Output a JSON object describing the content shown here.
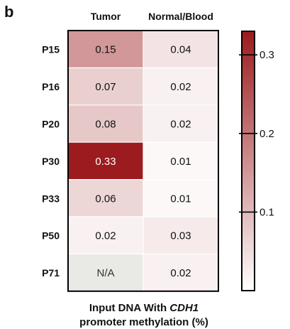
{
  "panel_label": "b",
  "chart_data": {
    "type": "heatmap",
    "columns": [
      "Tumor",
      "Normal/Blood"
    ],
    "rows": [
      "P15",
      "P16",
      "P20",
      "P30",
      "P33",
      "P50",
      "P71"
    ],
    "values": [
      [
        0.15,
        0.04
      ],
      [
        0.07,
        0.02
      ],
      [
        0.08,
        0.02
      ],
      [
        0.33,
        0.01
      ],
      [
        0.06,
        0.01
      ],
      [
        0.02,
        0.03
      ],
      [
        null,
        0.02
      ]
    ],
    "cell_labels": [
      [
        "0.15",
        "0.04"
      ],
      [
        "0.07",
        "0.02"
      ],
      [
        "0.08",
        "0.02"
      ],
      [
        "0.33",
        "0.01"
      ],
      [
        "0.06",
        "0.01"
      ],
      [
        "0.02",
        "0.03"
      ],
      [
        "N/A",
        "0.02"
      ]
    ],
    "xlabel": {
      "prefix": "Input DNA With ",
      "gene": "CDH1",
      "line2": "promoter methylation (%)"
    },
    "colorbar": {
      "range": [
        0,
        0.33
      ],
      "ticks": [
        0.1,
        0.2,
        0.3
      ],
      "tick_labels": [
        "0.1",
        "0.2",
        "0.3"
      ],
      "color_low": "#ffffff",
      "color_high": "#9b1b1e"
    },
    "na_color": "#e9e9e6"
  }
}
